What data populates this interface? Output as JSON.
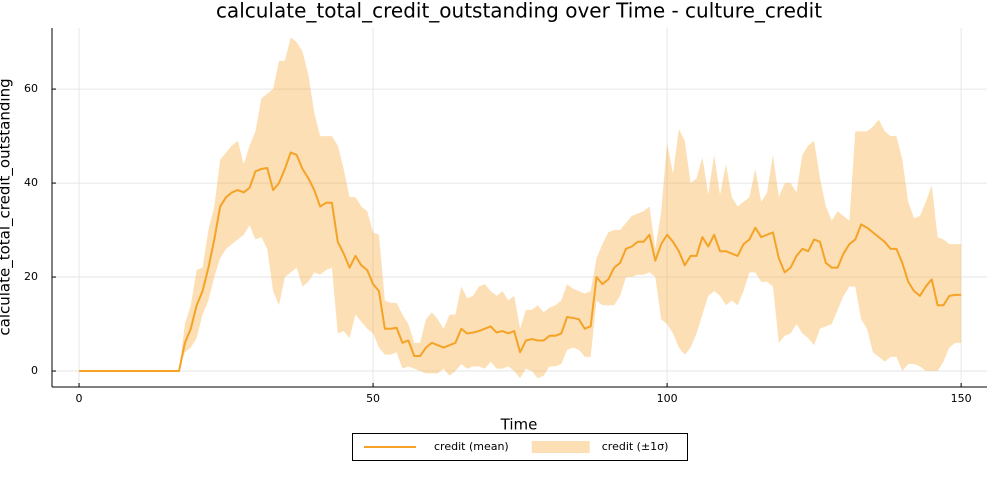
{
  "chart_data": {
    "type": "line",
    "title": "calculate_total_credit_outstanding over Time - culture_credit",
    "x_label": "Time",
    "y_label": "calculate_total_credit_outstanding",
    "xlim": [
      -4.6,
      154.4
    ],
    "xticks": [
      0,
      50,
      100,
      150
    ],
    "ylim": [
      -3.4,
      73
    ],
    "yticks": [
      0,
      20,
      40,
      60
    ],
    "grid": true,
    "legend": "bottom",
    "x": [
      0,
      1,
      2,
      3,
      4,
      5,
      6,
      7,
      8,
      9,
      10,
      11,
      12,
      13,
      14,
      15,
      16,
      17,
      18,
      19,
      20,
      21,
      22,
      23,
      24,
      25,
      26,
      27,
      28,
      29,
      30,
      31,
      32,
      33,
      34,
      35,
      36,
      37,
      38,
      39,
      40,
      41,
      42,
      43,
      44,
      45,
      46,
      47,
      48,
      49,
      50,
      51,
      52,
      53,
      54,
      55,
      56,
      57,
      58,
      59,
      60,
      61,
      62,
      63,
      64,
      65,
      66,
      67,
      68,
      69,
      70,
      71,
      72,
      73,
      74,
      75,
      76,
      77,
      78,
      79,
      80,
      81,
      82,
      83,
      84,
      85,
      86,
      87,
      88,
      89,
      90,
      91,
      92,
      93,
      94,
      95,
      96,
      97,
      98,
      99,
      100,
      101,
      102,
      103,
      104,
      105,
      106,
      107,
      108,
      109,
      110,
      111,
      112,
      113,
      114,
      115,
      116,
      117,
      118,
      119,
      120,
      121,
      122,
      123,
      124,
      125,
      126,
      127,
      128,
      129,
      130,
      131,
      132,
      133,
      134,
      135,
      136,
      137,
      138,
      139,
      140,
      141,
      142,
      143,
      144,
      145,
      146,
      147,
      148,
      149,
      150
    ],
    "series": [
      {
        "name": "credit (mean)",
        "color": "#f5a327",
        "values": [
          0,
          0,
          0,
          0,
          0,
          0,
          0,
          0,
          0,
          0,
          0,
          0,
          0,
          0,
          0,
          0,
          0,
          0,
          6,
          9,
          14,
          17,
          22,
          28,
          35,
          37,
          38,
          38.5,
          38,
          39,
          42.5,
          43,
          43.2,
          38.5,
          40,
          43,
          46.5,
          46,
          43,
          41,
          38.5,
          35,
          35.8,
          35.8,
          27.5,
          25,
          22,
          24.5,
          22.5,
          21.5,
          18.5,
          17,
          9,
          9,
          9.2,
          6,
          6.5,
          3.2,
          3.2,
          5,
          6,
          5.5,
          5,
          5.5,
          6,
          9,
          8,
          8.2,
          8.5,
          9,
          9.5,
          8.2,
          8.5,
          8,
          8.5,
          4,
          6.5,
          6.8,
          6.5,
          6.5,
          7.5,
          7.5,
          8,
          11.5,
          11.3,
          11,
          9,
          9.5,
          20,
          18.5,
          19.5,
          22,
          23,
          26,
          26.5,
          27.5,
          27.5,
          29,
          23.5,
          27,
          29,
          27.5,
          25.5,
          22.5,
          24.5,
          24.5,
          28.5,
          26.5,
          29,
          25.5,
          25.5,
          25,
          24.5,
          27,
          28,
          30.5,
          28.5,
          29,
          29.5,
          24,
          21,
          22,
          24.5,
          26,
          25.5,
          28,
          27.5,
          23,
          22,
          22,
          25,
          27,
          28,
          31.2,
          30.5,
          29.5,
          28.5,
          27.5,
          26,
          26,
          23,
          19,
          17,
          16,
          18,
          19.5,
          14,
          14,
          16,
          16.2,
          16.2
        ]
      },
      {
        "name": "credit (±1σ)",
        "color": "#f5a327",
        "upper": [
          0,
          0,
          0,
          0,
          0,
          0,
          0,
          0,
          0,
          0,
          0,
          0,
          0,
          0,
          0,
          0,
          0,
          0,
          10,
          14,
          21.5,
          22,
          30,
          35,
          45,
          46.5,
          48,
          49,
          44,
          48,
          51,
          58,
          59,
          60,
          66,
          66,
          71,
          70,
          68,
          63,
          55,
          50,
          50,
          50,
          48,
          43,
          37,
          37,
          35,
          34,
          29.5,
          29,
          15,
          14.5,
          14.5,
          12,
          10,
          6,
          6,
          11,
          12.5,
          11,
          9,
          12,
          12,
          18,
          15.5,
          16,
          18,
          18.5,
          17,
          16,
          17,
          15,
          16,
          9,
          13,
          13,
          14,
          12.5,
          13.5,
          14,
          15,
          18.5,
          17.5,
          17,
          16.5,
          17,
          24,
          27,
          29.5,
          30,
          30,
          31.5,
          33,
          33.5,
          34,
          35,
          26,
          34,
          48.5,
          42,
          51.5,
          49,
          40,
          41,
          45.5,
          37.5,
          46,
          37.5,
          44,
          37,
          35,
          36,
          37,
          43,
          36,
          38,
          46,
          37,
          40,
          40,
          38,
          46,
          48,
          49,
          41,
          35,
          32,
          34,
          33,
          32,
          51,
          51,
          51,
          52,
          53.5,
          51,
          50,
          50,
          45,
          36,
          32.5,
          33,
          36,
          39.5,
          28.5,
          28,
          27,
          27,
          27
        ],
        "lower": [
          0,
          0,
          0,
          0,
          0,
          0,
          0,
          0,
          0,
          0,
          0,
          0,
          0,
          0,
          0,
          0,
          0,
          0,
          4,
          5,
          7,
          12,
          15,
          20,
          24,
          26,
          27,
          28,
          29,
          31,
          28,
          28.5,
          26,
          17,
          14,
          20,
          21,
          22,
          18,
          19,
          21,
          20.5,
          21.5,
          22,
          8,
          8.5,
          7,
          12,
          10.5,
          9,
          8,
          5,
          3.5,
          3.5,
          4,
          0.5,
          1,
          0.5,
          0,
          -0.5,
          -0.5,
          -0.5,
          0.5,
          -1,
          0,
          1.5,
          0.5,
          1,
          1,
          0.5,
          2,
          0.5,
          0.5,
          1,
          0,
          -1.5,
          0.5,
          0,
          -1.5,
          -1,
          1,
          1,
          1.5,
          4.5,
          5,
          4.5,
          3,
          3,
          15,
          14,
          14,
          14,
          16,
          20,
          20,
          20.5,
          20.5,
          21,
          20,
          11,
          10,
          8,
          5,
          3.5,
          5,
          8,
          12,
          16,
          17,
          16,
          14,
          15,
          14,
          17,
          21,
          21,
          19,
          19,
          18,
          6,
          7.5,
          8,
          10,
          8,
          7,
          5.5,
          9,
          9.5,
          10,
          13,
          16,
          18,
          18,
          11,
          9,
          4,
          3,
          2,
          3,
          3,
          0,
          1.5,
          1.5,
          1,
          0,
          0,
          0,
          2,
          5,
          6,
          6
        ]
      }
    ]
  }
}
